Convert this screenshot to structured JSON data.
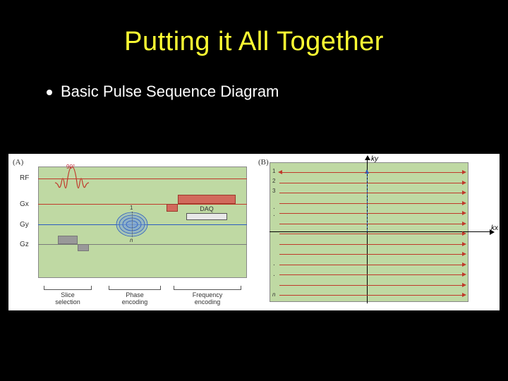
{
  "title": "Putting it All Together",
  "bullet": "Basic Pulse Sequence Diagram",
  "panelA": {
    "label": "(A)",
    "rows": {
      "rf": "RF",
      "gx": "Gx",
      "gy": "Gy",
      "gz": "Gz"
    },
    "rf_angle": "90°",
    "daq": "DAQ",
    "gy_top": "1",
    "gy_bottom": "n",
    "captions": {
      "slice": "Slice\nselection",
      "phase": "Phase\nencoding",
      "freq": "Frequency\nencoding"
    },
    "colors": {
      "green": "#bfd9a3",
      "red": "#c0392b",
      "blue": "#2a5cc1",
      "gray": "#7a7a7a",
      "gz_fill": "#999999",
      "gx_fill": "#d26a5c"
    },
    "bracket_ranges": {
      "slice": [
        48,
        120
      ],
      "phase": [
        140,
        218
      ],
      "freq": [
        232,
        334
      ]
    }
  },
  "panelB": {
    "label": "(B)",
    "axis": {
      "kx": "kx",
      "ky": "ky"
    },
    "row_numbers": [
      "1",
      "2",
      "3"
    ],
    "dots": ". . .",
    "n_label": "n",
    "line_count": 13,
    "colors": {
      "line": "#c0392b",
      "axis": "#000000",
      "dash_blue": "#2a5cc1"
    }
  },
  "style": {
    "bg": "#000000",
    "title_color": "#ffff33",
    "text_color": "#ffffff",
    "figure_bg": "#ffffff",
    "title_fontsize": 38,
    "bullet_fontsize": 22
  }
}
